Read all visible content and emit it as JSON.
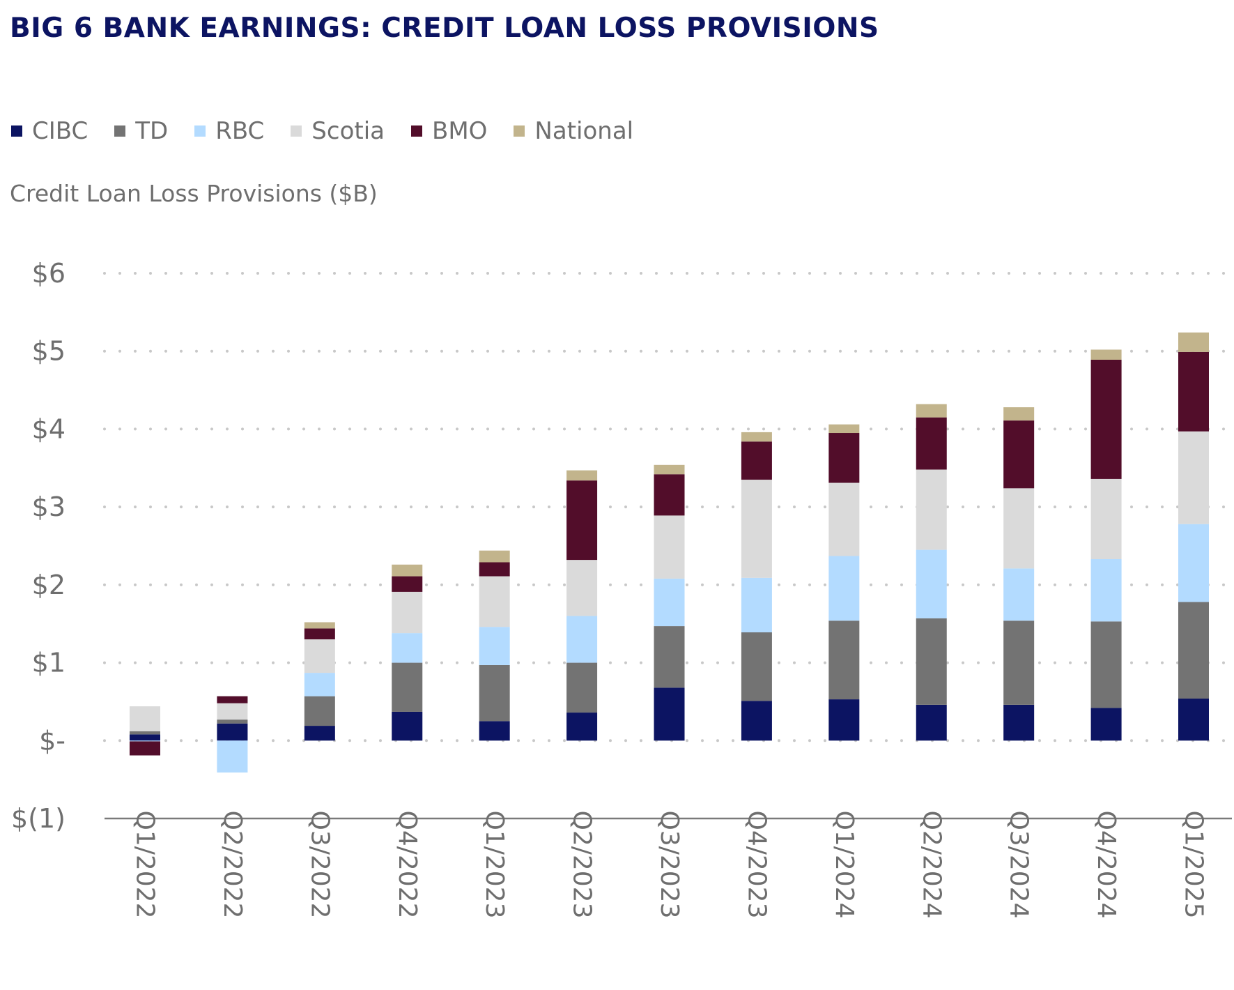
{
  "title": "BIG 6 BANK EARNINGS: CREDIT LOAN LOSS PROVISIONS",
  "colors": {
    "title": "#0c1462",
    "text": "#6e6e6e",
    "grid": "#c8c8c8",
    "axis": "#7a7a7a"
  },
  "chart_data": {
    "type": "bar",
    "stacked": true,
    "title": "BIG 6 BANK EARNINGS: CREDIT LOAN LOSS PROVISIONS",
    "xlabel": "",
    "ylabel": "Credit Loan Loss Provisions ($B)",
    "ylim": [
      -1,
      6
    ],
    "yticks": [
      -1,
      0,
      1,
      2,
      3,
      4,
      5,
      6
    ],
    "ytick_labels": [
      "$(1)",
      "$-",
      "$1",
      "$2",
      "$3",
      "$4",
      "$5",
      "$6"
    ],
    "grid": true,
    "legend_position": "top-left",
    "categories": [
      "Q1/2022",
      "Q2/2022",
      "Q3/2022",
      "Q4/2022",
      "Q1/2023",
      "Q2/2023",
      "Q3/2023",
      "Q4/2023",
      "Q1/2024",
      "Q2/2024",
      "Q3/2024",
      "Q4/2024",
      "Q1/2025"
    ],
    "series": [
      {
        "name": "CIBC",
        "color": "#0c1462",
        "values": [
          0.08,
          0.22,
          0.19,
          0.37,
          0.25,
          0.36,
          0.68,
          0.51,
          0.53,
          0.46,
          0.46,
          0.42,
          0.54
        ]
      },
      {
        "name": "TD",
        "color": "#737373",
        "values": [
          0.04,
          0.05,
          0.38,
          0.63,
          0.72,
          0.64,
          0.79,
          0.88,
          1.01,
          1.11,
          1.08,
          1.11,
          1.24
        ]
      },
      {
        "name": "RBC",
        "color": "#b3dbff",
        "values": [
          -0.01,
          -0.41,
          0.3,
          0.38,
          0.49,
          0.6,
          0.61,
          0.7,
          0.83,
          0.88,
          0.67,
          0.8,
          1.0
        ]
      },
      {
        "name": "Scotia",
        "color": "#dadada",
        "values": [
          0.32,
          0.21,
          0.43,
          0.53,
          0.65,
          0.72,
          0.81,
          1.26,
          0.94,
          1.03,
          1.03,
          1.03,
          1.19
        ]
      },
      {
        "name": "BMO",
        "color": "#520d2a",
        "values": [
          -0.18,
          0.09,
          0.14,
          0.2,
          0.18,
          1.02,
          0.53,
          0.49,
          0.64,
          0.67,
          0.87,
          1.53,
          1.02
        ]
      },
      {
        "name": "National",
        "color": "#c2b48c",
        "values": [
          0.0,
          0.0,
          0.08,
          0.15,
          0.15,
          0.13,
          0.12,
          0.12,
          0.11,
          0.17,
          0.17,
          0.13,
          0.25
        ]
      }
    ]
  }
}
